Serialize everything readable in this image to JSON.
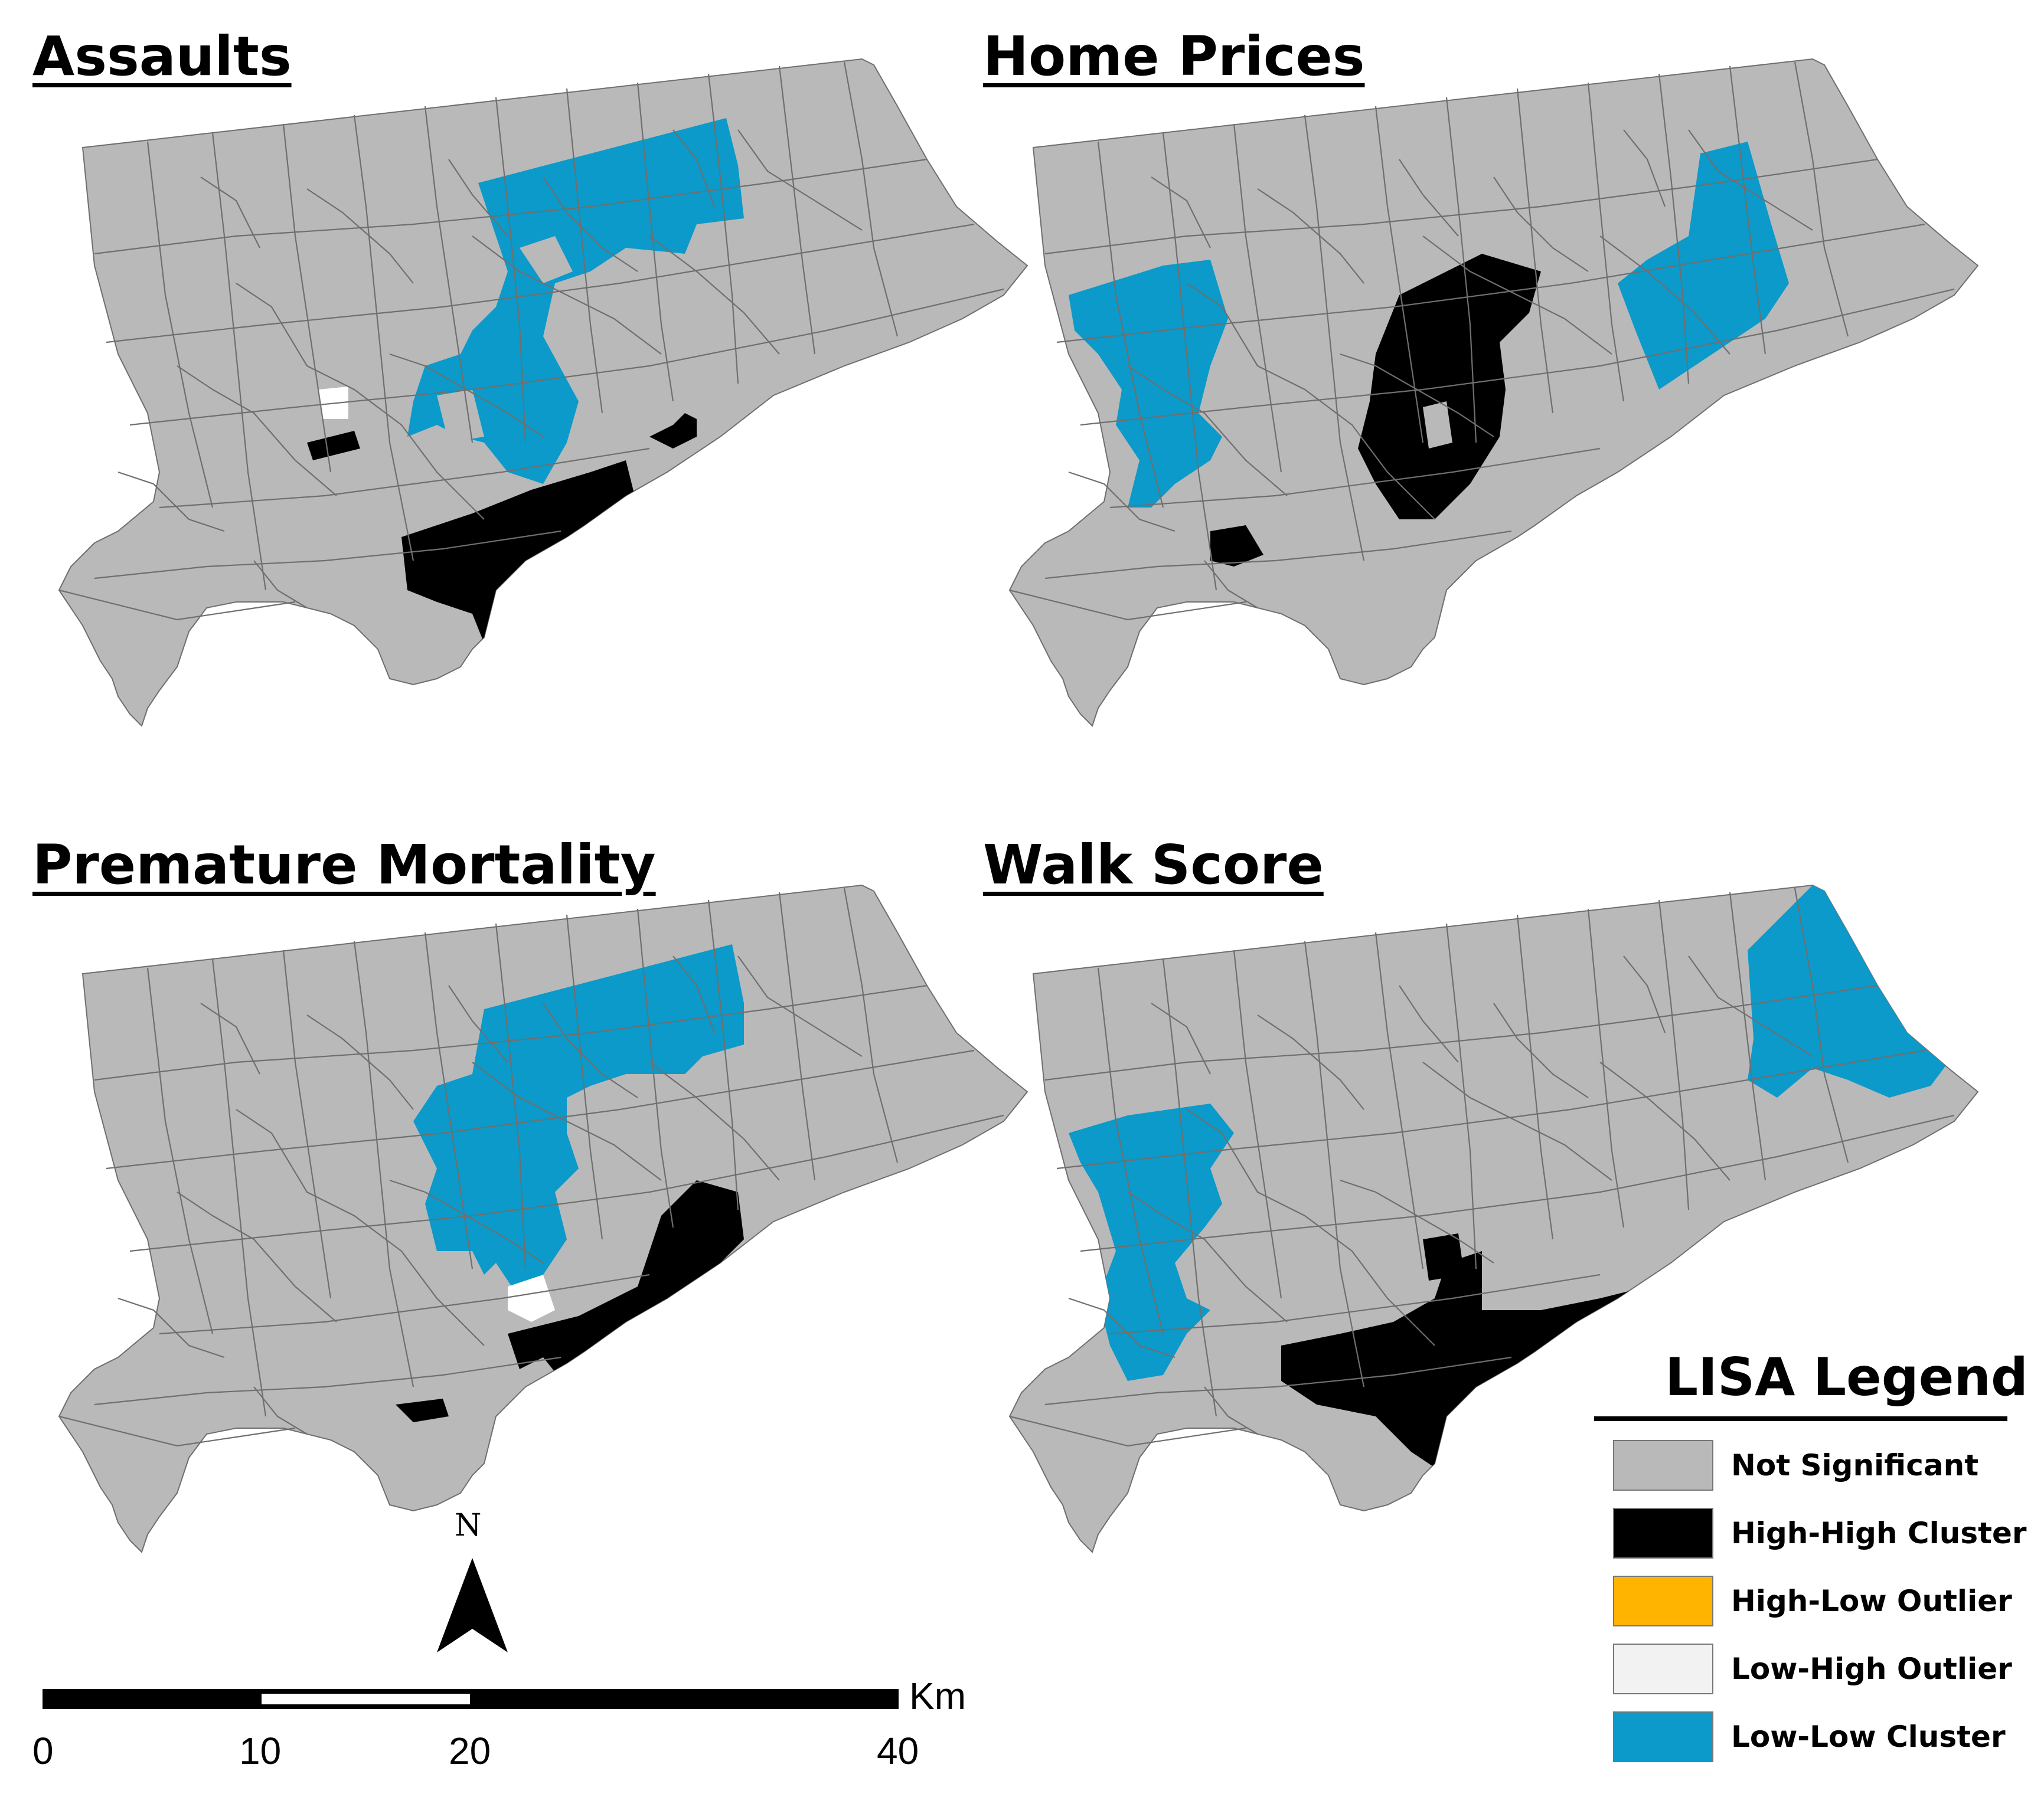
{
  "panels": [
    {
      "title": "Assaults"
    },
    {
      "title": "Home Prices"
    },
    {
      "title": "Premature Mortality"
    },
    {
      "title": "Walk Score"
    }
  ],
  "colors": {
    "not_significant": "#b9b9b9",
    "high_high": "#000000",
    "high_low": "#ffb400",
    "low_high": "#f2f2f2",
    "low_low": "#0b9ac9",
    "boundary": "#6f6f6f"
  },
  "legend": {
    "title": "LISA Legend",
    "items": [
      {
        "label": "Not Significant",
        "color": "#b9b9b9"
      },
      {
        "label": "High-High Cluster",
        "color": "#000000"
      },
      {
        "label": "High-Low Outlier",
        "color": "#ffb400"
      },
      {
        "label": "Low-High Outlier",
        "color": "#f2f2f2"
      },
      {
        "label": "Low-Low Cluster",
        "color": "#0b9ac9"
      }
    ]
  },
  "north_arrow": {
    "label": "N"
  },
  "scale_bar": {
    "unit": "Km",
    "ticks": [
      "0",
      "10",
      "20",
      "40"
    ]
  }
}
